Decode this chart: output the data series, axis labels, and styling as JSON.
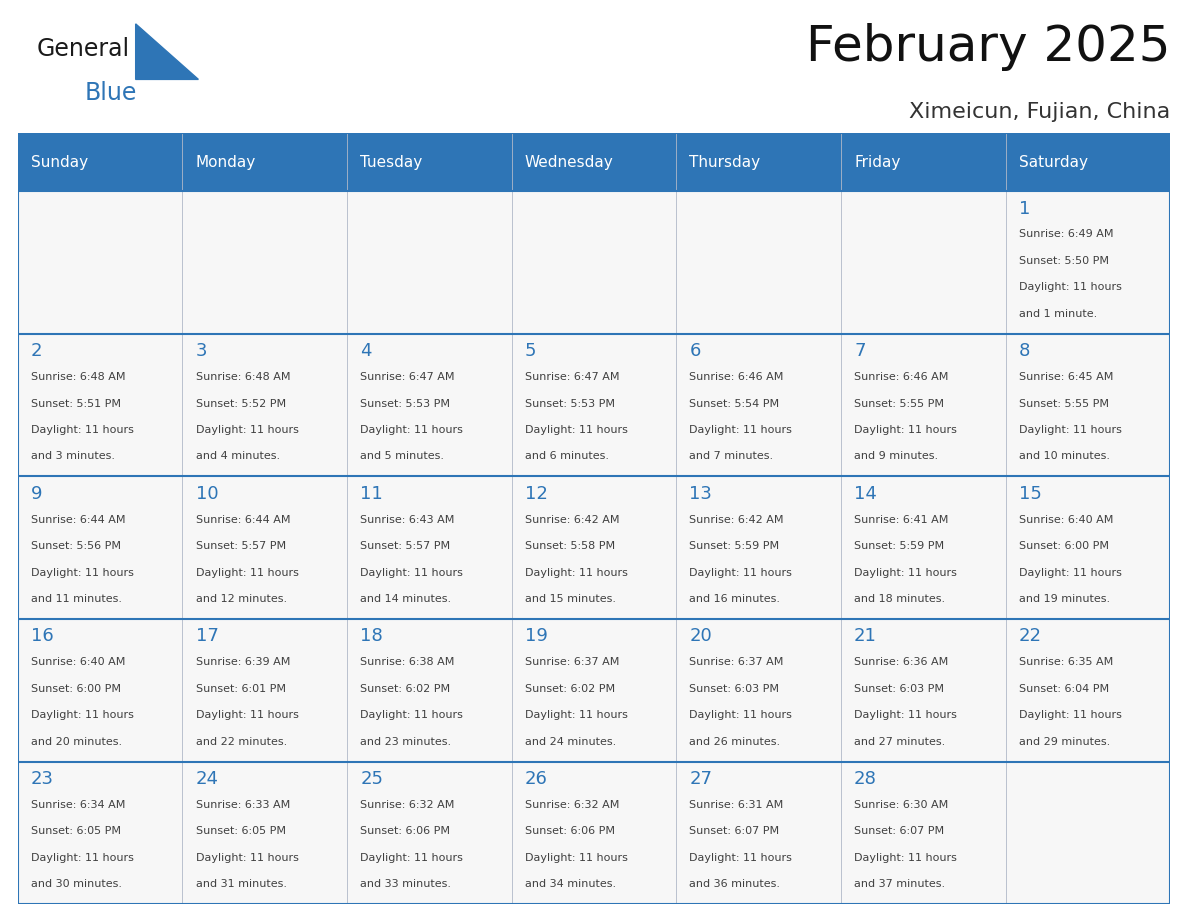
{
  "title": "February 2025",
  "subtitle": "Ximeicun, Fujian, China",
  "header_color": "#2e75b6",
  "header_text_color": "#ffffff",
  "grid_line_color": "#2e75b6",
  "day_headers": [
    "Sunday",
    "Monday",
    "Tuesday",
    "Wednesday",
    "Thursday",
    "Friday",
    "Saturday"
  ],
  "background_color": "#ffffff",
  "cell_bg_color": "#ffffff",
  "day_number_color": "#2e75b6",
  "info_text_color": "#404040",
  "logo_general_color": "#1a1a1a",
  "logo_blue_color": "#2e75b6",
  "calendar_data": [
    [
      null,
      null,
      null,
      null,
      null,
      null,
      {
        "day": "1",
        "sunrise": "6:49 AM",
        "sunset": "5:50 PM",
        "daylight_line1": "Daylight: 11 hours",
        "daylight_line2": "and 1 minute."
      }
    ],
    [
      {
        "day": "2",
        "sunrise": "6:48 AM",
        "sunset": "5:51 PM",
        "daylight_line1": "Daylight: 11 hours",
        "daylight_line2": "and 3 minutes."
      },
      {
        "day": "3",
        "sunrise": "6:48 AM",
        "sunset": "5:52 PM",
        "daylight_line1": "Daylight: 11 hours",
        "daylight_line2": "and 4 minutes."
      },
      {
        "day": "4",
        "sunrise": "6:47 AM",
        "sunset": "5:53 PM",
        "daylight_line1": "Daylight: 11 hours",
        "daylight_line2": "and 5 minutes."
      },
      {
        "day": "5",
        "sunrise": "6:47 AM",
        "sunset": "5:53 PM",
        "daylight_line1": "Daylight: 11 hours",
        "daylight_line2": "and 6 minutes."
      },
      {
        "day": "6",
        "sunrise": "6:46 AM",
        "sunset": "5:54 PM",
        "daylight_line1": "Daylight: 11 hours",
        "daylight_line2": "and 7 minutes."
      },
      {
        "day": "7",
        "sunrise": "6:46 AM",
        "sunset": "5:55 PM",
        "daylight_line1": "Daylight: 11 hours",
        "daylight_line2": "and 9 minutes."
      },
      {
        "day": "8",
        "sunrise": "6:45 AM",
        "sunset": "5:55 PM",
        "daylight_line1": "Daylight: 11 hours",
        "daylight_line2": "and 10 minutes."
      }
    ],
    [
      {
        "day": "9",
        "sunrise": "6:44 AM",
        "sunset": "5:56 PM",
        "daylight_line1": "Daylight: 11 hours",
        "daylight_line2": "and 11 minutes."
      },
      {
        "day": "10",
        "sunrise": "6:44 AM",
        "sunset": "5:57 PM",
        "daylight_line1": "Daylight: 11 hours",
        "daylight_line2": "and 12 minutes."
      },
      {
        "day": "11",
        "sunrise": "6:43 AM",
        "sunset": "5:57 PM",
        "daylight_line1": "Daylight: 11 hours",
        "daylight_line2": "and 14 minutes."
      },
      {
        "day": "12",
        "sunrise": "6:42 AM",
        "sunset": "5:58 PM",
        "daylight_line1": "Daylight: 11 hours",
        "daylight_line2": "and 15 minutes."
      },
      {
        "day": "13",
        "sunrise": "6:42 AM",
        "sunset": "5:59 PM",
        "daylight_line1": "Daylight: 11 hours",
        "daylight_line2": "and 16 minutes."
      },
      {
        "day": "14",
        "sunrise": "6:41 AM",
        "sunset": "5:59 PM",
        "daylight_line1": "Daylight: 11 hours",
        "daylight_line2": "and 18 minutes."
      },
      {
        "day": "15",
        "sunrise": "6:40 AM",
        "sunset": "6:00 PM",
        "daylight_line1": "Daylight: 11 hours",
        "daylight_line2": "and 19 minutes."
      }
    ],
    [
      {
        "day": "16",
        "sunrise": "6:40 AM",
        "sunset": "6:00 PM",
        "daylight_line1": "Daylight: 11 hours",
        "daylight_line2": "and 20 minutes."
      },
      {
        "day": "17",
        "sunrise": "6:39 AM",
        "sunset": "6:01 PM",
        "daylight_line1": "Daylight: 11 hours",
        "daylight_line2": "and 22 minutes."
      },
      {
        "day": "18",
        "sunrise": "6:38 AM",
        "sunset": "6:02 PM",
        "daylight_line1": "Daylight: 11 hours",
        "daylight_line2": "and 23 minutes."
      },
      {
        "day": "19",
        "sunrise": "6:37 AM",
        "sunset": "6:02 PM",
        "daylight_line1": "Daylight: 11 hours",
        "daylight_line2": "and 24 minutes."
      },
      {
        "day": "20",
        "sunrise": "6:37 AM",
        "sunset": "6:03 PM",
        "daylight_line1": "Daylight: 11 hours",
        "daylight_line2": "and 26 minutes."
      },
      {
        "day": "21",
        "sunrise": "6:36 AM",
        "sunset": "6:03 PM",
        "daylight_line1": "Daylight: 11 hours",
        "daylight_line2": "and 27 minutes."
      },
      {
        "day": "22",
        "sunrise": "6:35 AM",
        "sunset": "6:04 PM",
        "daylight_line1": "Daylight: 11 hours",
        "daylight_line2": "and 29 minutes."
      }
    ],
    [
      {
        "day": "23",
        "sunrise": "6:34 AM",
        "sunset": "6:05 PM",
        "daylight_line1": "Daylight: 11 hours",
        "daylight_line2": "and 30 minutes."
      },
      {
        "day": "24",
        "sunrise": "6:33 AM",
        "sunset": "6:05 PM",
        "daylight_line1": "Daylight: 11 hours",
        "daylight_line2": "and 31 minutes."
      },
      {
        "day": "25",
        "sunrise": "6:32 AM",
        "sunset": "6:06 PM",
        "daylight_line1": "Daylight: 11 hours",
        "daylight_line2": "and 33 minutes."
      },
      {
        "day": "26",
        "sunrise": "6:32 AM",
        "sunset": "6:06 PM",
        "daylight_line1": "Daylight: 11 hours",
        "daylight_line2": "and 34 minutes."
      },
      {
        "day": "27",
        "sunrise": "6:31 AM",
        "sunset": "6:07 PM",
        "daylight_line1": "Daylight: 11 hours",
        "daylight_line2": "and 36 minutes."
      },
      {
        "day": "28",
        "sunrise": "6:30 AM",
        "sunset": "6:07 PM",
        "daylight_line1": "Daylight: 11 hours",
        "daylight_line2": "and 37 minutes."
      },
      null
    ]
  ]
}
